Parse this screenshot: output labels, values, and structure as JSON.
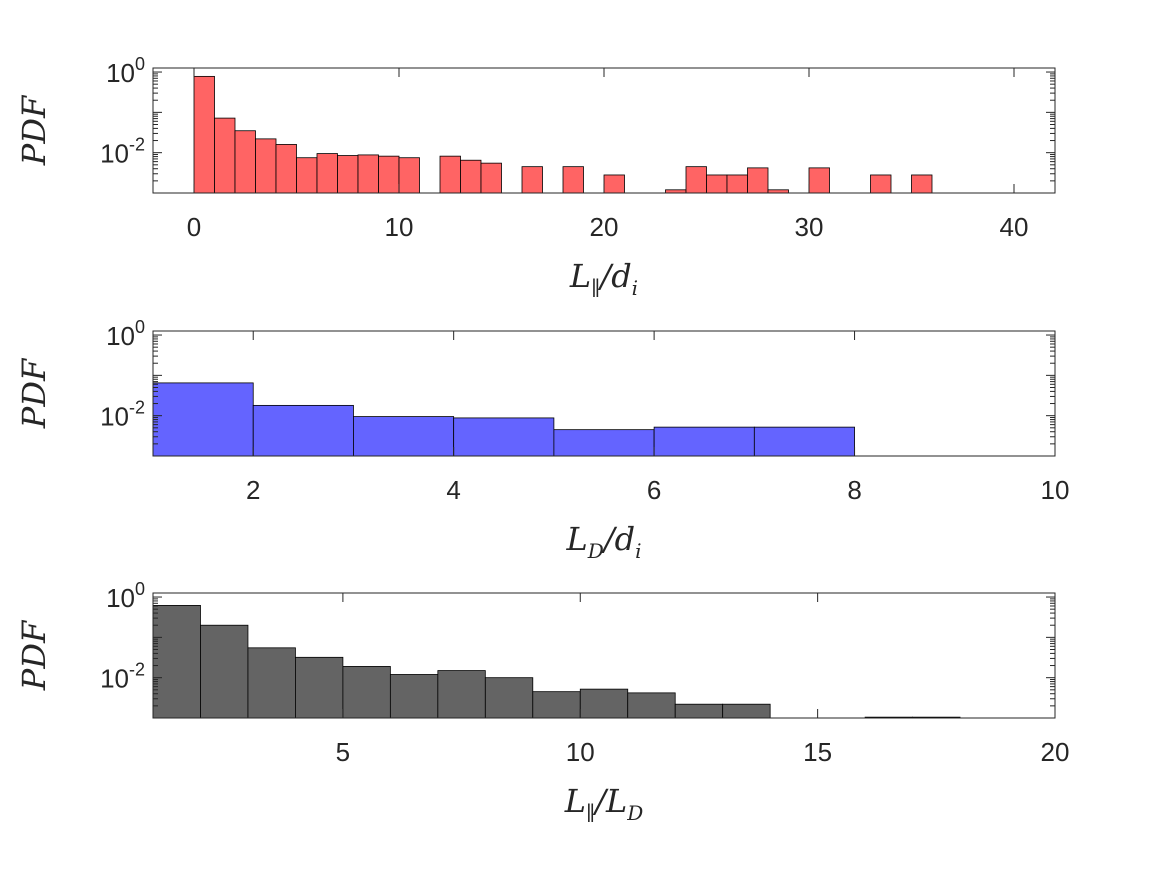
{
  "chart_data": [
    {
      "type": "bar",
      "color": "#ff6464",
      "xlim": [
        -2,
        42
      ],
      "ylim_log10": [
        -3,
        0.1
      ],
      "xticks": [
        0,
        10,
        20,
        30,
        40
      ],
      "yticks": [
        {
          "base": "10",
          "exp": "0",
          "value": 1
        },
        {
          "base": "10",
          "exp": "-2",
          "value": 0.01
        }
      ],
      "ylabel": "PDF",
      "xlabel": {
        "main": "L",
        "sub": "∥",
        "rest": "/d",
        "rest_sub": "i"
      },
      "bin_edges": [
        0,
        1,
        2,
        3,
        4,
        5,
        6,
        7,
        8,
        9,
        10,
        11,
        12,
        13,
        14,
        15,
        16,
        17,
        18,
        19,
        20,
        21,
        22,
        23,
        24,
        25,
        26,
        27,
        28,
        29,
        30,
        31,
        32,
        33,
        34,
        35,
        36
      ],
      "values": [
        0.78,
        0.072,
        0.035,
        0.022,
        0.016,
        0.0075,
        0.0095,
        0.0085,
        0.0088,
        0.0082,
        0.0075,
        0,
        0.0082,
        0.0065,
        0.0055,
        0,
        0.0045,
        0,
        0.0045,
        0,
        0.0028,
        0,
        0,
        0.0012,
        0.0045,
        0.0028,
        0.0028,
        0.0042,
        0.0012,
        0,
        0.0042,
        0,
        0,
        0.0028,
        0,
        0.0028
      ]
    },
    {
      "type": "bar",
      "color": "#6464ff",
      "xlim": [
        1,
        10
      ],
      "ylim_log10": [
        -3,
        0.1
      ],
      "xticks": [
        2,
        4,
        6,
        8,
        10
      ],
      "yticks": [
        {
          "base": "10",
          "exp": "0",
          "value": 1
        },
        {
          "base": "10",
          "exp": "-2",
          "value": 0.01
        }
      ],
      "ylabel": "PDF",
      "xlabel": {
        "main": "L",
        "sub": "D",
        "rest": "/d",
        "rest_sub": "i"
      },
      "bin_edges": [
        1,
        2,
        3,
        4,
        5,
        6,
        7,
        8,
        9
      ],
      "values": [
        0.065,
        0.018,
        0.0095,
        0.0088,
        0.0045,
        0.0052,
        0.0052,
        0
      ]
    },
    {
      "type": "bar",
      "color": "#646464",
      "xlim": [
        1,
        20
      ],
      "ylim_log10": [
        -3,
        0.1
      ],
      "xticks": [
        5,
        10,
        15,
        20
      ],
      "yticks": [
        {
          "base": "10",
          "exp": "0",
          "value": 1
        },
        {
          "base": "10",
          "exp": "-2",
          "value": 0.01
        }
      ],
      "ylabel": "PDF",
      "xlabel": {
        "main": "L",
        "sub": "∥",
        "rest": "/L",
        "rest_sub": "D"
      },
      "bin_edges": [
        1,
        2,
        3,
        4,
        5,
        6,
        7,
        8,
        9,
        10,
        11,
        12,
        13,
        14,
        15,
        16,
        17,
        18
      ],
      "values": [
        0.62,
        0.2,
        0.055,
        0.032,
        0.019,
        0.012,
        0.015,
        0.01,
        0.0045,
        0.0052,
        0.0042,
        0.0022,
        0.0022,
        0,
        0,
        0.00105,
        0.00105
      ]
    }
  ]
}
